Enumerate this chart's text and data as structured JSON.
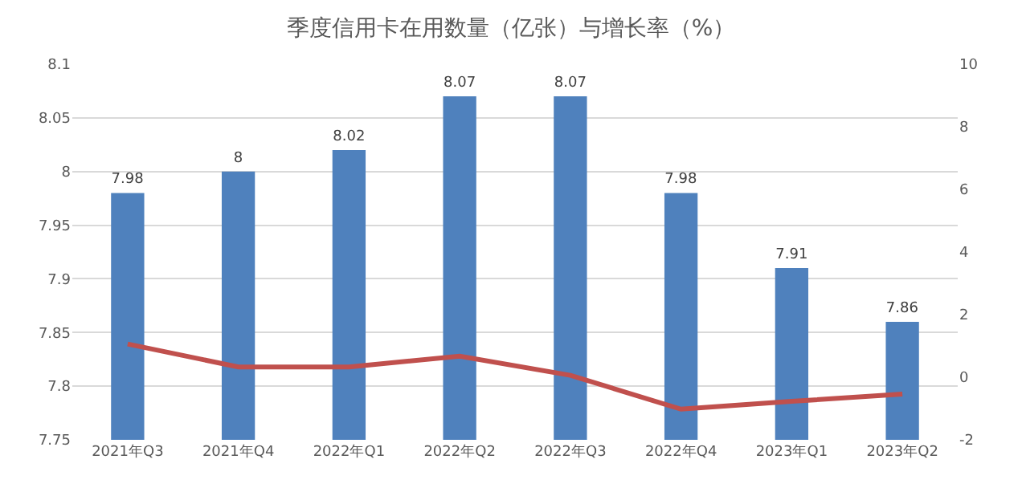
{
  "chart_data": {
    "type": "bar",
    "title": "季度信用卡在用数量（亿张）与增长率（%）",
    "categories": [
      "2021年Q3",
      "2021年Q4",
      "2022年Q1",
      "2022年Q2",
      "2022年Q3",
      "2022年Q4",
      "2023年Q1",
      "2023年Q2"
    ],
    "series": [
      {
        "color": "#4f81bd",
        "values": [
          7.98,
          8,
          8.02,
          8.07,
          8.07,
          7.98,
          7.91,
          7.86
        ],
        "value_labels": [
          "7.98",
          "8",
          "8.02",
          "8.07",
          "8.07",
          "7.98",
          "7.91",
          "7.86"
        ]
      },
      {
        "type": "line",
        "axis": "y2",
        "color": "#c0504d",
        "values": [
          1.06,
          0.33,
          0.33,
          0.67,
          0.06,
          -1.02,
          -0.77,
          -0.54
        ]
      }
    ],
    "ylim": [
      7.75,
      8.1
    ],
    "yticks": [
      7.75,
      7.8,
      7.85,
      7.9,
      7.95,
      8,
      8.05,
      8.1
    ],
    "y2lim": [
      -2,
      10
    ],
    "y2ticks": [
      -2,
      0,
      2,
      4,
      6,
      8,
      10
    ],
    "grid": "y",
    "legend": false,
    "marker": "none",
    "line_style": "solid"
  }
}
